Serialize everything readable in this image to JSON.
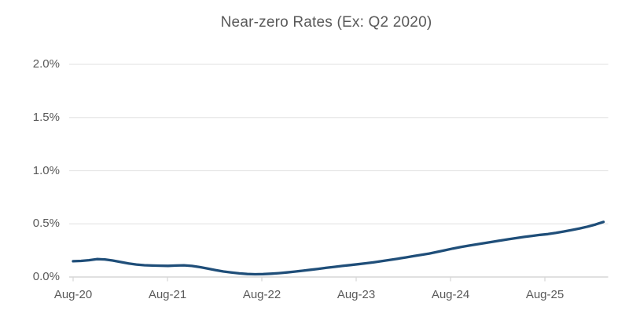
{
  "title": "Near-zero Rates (Ex: Q2 2020)",
  "colors": {
    "line": "#1f4e79",
    "gridline": "#e6e6e6",
    "axis_line": "#d6d6d6",
    "tick_mark": "#d6d6d6",
    "label_text": "#595959",
    "title_text": "#595959",
    "background": "#ffffff"
  },
  "chart_data": {
    "type": "line",
    "title": "Near-zero Rates (Ex: Q2 2020)",
    "xlabel": "",
    "ylabel": "",
    "x_unit": "months since Aug-2020",
    "y_unit": "percent",
    "x_tick_labels": [
      "Aug-20",
      "Aug-21",
      "Aug-22",
      "Aug-23",
      "Aug-24",
      "Aug-25"
    ],
    "y_tick_labels": [
      "0.0%",
      "0.5%",
      "1.0%",
      "1.5%",
      "2.0%"
    ],
    "ylim": [
      0,
      2.0
    ],
    "grid": "horizontal-only",
    "legend": "none",
    "key_points_read_from_chart": {
      "Aug-20": "0.15%",
      "Nov-20 local peak": "0.17%",
      "Aug-21": "0.10%",
      "Jul-22 minimum": "0.03%",
      "Aug-22": "0.03%",
      "Aug-23": "0.12%",
      "Aug-24": "0.27%",
      "Aug-25": "0.40%",
      "series end (early 2026)": "0.52%"
    },
    "series": [
      {
        "name": "Near-zero rate",
        "color": "#1f4e79",
        "points": [
          [
            0,
            0.148
          ],
          [
            1,
            0.151
          ],
          [
            2,
            0.158
          ],
          [
            3,
            0.168
          ],
          [
            4,
            0.165
          ],
          [
            5,
            0.155
          ],
          [
            6,
            0.141
          ],
          [
            7,
            0.128
          ],
          [
            8,
            0.117
          ],
          [
            9,
            0.111
          ],
          [
            10,
            0.108
          ],
          [
            11,
            0.106
          ],
          [
            12,
            0.105
          ],
          [
            13,
            0.108
          ],
          [
            14,
            0.11
          ],
          [
            15,
            0.104
          ],
          [
            16,
            0.093
          ],
          [
            17,
            0.079
          ],
          [
            18,
            0.065
          ],
          [
            19,
            0.052
          ],
          [
            20,
            0.042
          ],
          [
            21,
            0.034
          ],
          [
            22,
            0.028
          ],
          [
            23,
            0.026
          ],
          [
            24,
            0.027
          ],
          [
            25,
            0.031
          ],
          [
            26,
            0.036
          ],
          [
            27,
            0.043
          ],
          [
            28,
            0.051
          ],
          [
            29,
            0.059
          ],
          [
            30,
            0.068
          ],
          [
            31,
            0.077
          ],
          [
            32,
            0.086
          ],
          [
            33,
            0.095
          ],
          [
            34,
            0.104
          ],
          [
            35,
            0.112
          ],
          [
            36,
            0.12
          ],
          [
            37,
            0.129
          ],
          [
            38,
            0.139
          ],
          [
            39,
            0.149
          ],
          [
            40,
            0.16
          ],
          [
            41,
            0.172
          ],
          [
            42,
            0.184
          ],
          [
            43,
            0.196
          ],
          [
            44,
            0.208
          ],
          [
            45,
            0.221
          ],
          [
            46,
            0.236
          ],
          [
            47,
            0.252
          ],
          [
            48,
            0.268
          ],
          [
            49,
            0.282
          ],
          [
            50,
            0.295
          ],
          [
            51,
            0.307
          ],
          [
            52,
            0.319
          ],
          [
            53,
            0.331
          ],
          [
            54,
            0.343
          ],
          [
            55,
            0.355
          ],
          [
            56,
            0.366
          ],
          [
            57,
            0.377
          ],
          [
            58,
            0.387
          ],
          [
            59,
            0.396
          ],
          [
            60,
            0.404
          ],
          [
            61,
            0.415
          ],
          [
            62,
            0.428
          ],
          [
            63,
            0.442
          ],
          [
            64,
            0.457
          ],
          [
            65,
            0.474
          ],
          [
            66,
            0.494
          ],
          [
            67,
            0.518
          ]
        ]
      }
    ]
  }
}
